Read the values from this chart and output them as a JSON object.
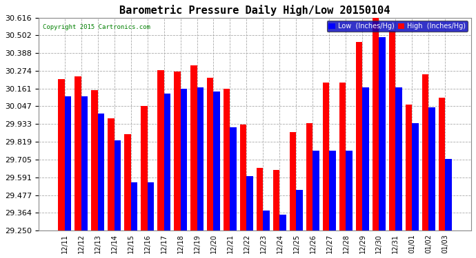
{
  "title": "Barometric Pressure Daily High/Low 20150104",
  "copyright": "Copyright 2015 Cartronics.com",
  "categories": [
    "12/11",
    "12/12",
    "12/13",
    "12/14",
    "12/15",
    "12/16",
    "12/17",
    "12/18",
    "12/19",
    "12/20",
    "12/21",
    "12/22",
    "12/23",
    "12/24",
    "12/25",
    "12/26",
    "12/27",
    "12/28",
    "12/29",
    "12/30",
    "12/31",
    "01/01",
    "01/02",
    "01/03"
  ],
  "high_values": [
    30.22,
    30.24,
    30.15,
    29.97,
    29.87,
    30.05,
    30.28,
    30.27,
    30.31,
    30.23,
    30.16,
    29.93,
    29.65,
    29.64,
    29.88,
    29.94,
    30.2,
    30.2,
    30.46,
    30.62,
    30.53,
    30.06,
    30.25,
    30.1
  ],
  "low_values": [
    30.11,
    30.11,
    30.0,
    29.83,
    29.56,
    29.56,
    30.13,
    30.16,
    30.17,
    30.14,
    29.91,
    29.6,
    29.38,
    29.35,
    29.51,
    29.76,
    29.76,
    29.76,
    30.17,
    30.49,
    30.17,
    29.94,
    30.04,
    29.71
  ],
  "ylim": [
    29.25,
    30.616
  ],
  "ybaseline": 29.25,
  "yticks": [
    29.25,
    29.364,
    29.477,
    29.591,
    29.705,
    29.819,
    29.933,
    30.047,
    30.161,
    30.274,
    30.388,
    30.502,
    30.616
  ],
  "bar_width": 0.38,
  "high_color": "#FF0000",
  "low_color": "#0000FF",
  "bg_color": "#FFFFFF",
  "plot_bg_color": "#FFFFFF",
  "grid_color": "#AAAAAA",
  "title_fontsize": 11,
  "tick_fontsize": 7,
  "ytick_fontsize": 8,
  "legend_labels": [
    "Low  (Inches/Hg)",
    "High  (Inches/Hg)"
  ]
}
